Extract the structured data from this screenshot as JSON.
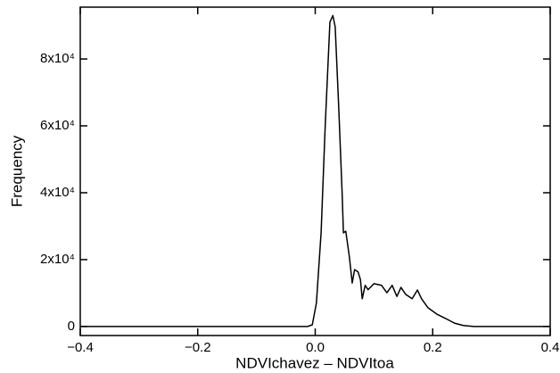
{
  "chart_data": {
    "type": "line",
    "x_label": "NDVIchavez – NDVItoa",
    "y_label": "Frequency",
    "color": "#000000",
    "x": [
      -0.4,
      -0.2,
      -0.013,
      -0.005,
      0.002,
      0.01,
      0.017,
      0.025,
      0.03,
      0.034,
      0.04,
      0.046,
      0.048,
      0.052,
      0.058,
      0.063,
      0.067,
      0.073,
      0.077,
      0.08,
      0.085,
      0.09,
      0.1,
      0.113,
      0.122,
      0.131,
      0.139,
      0.146,
      0.154,
      0.165,
      0.174,
      0.181,
      0.192,
      0.207,
      0.222,
      0.237,
      0.252,
      0.27,
      0.4
    ],
    "values": [
      0,
      0,
      0,
      500,
      7000,
      28000,
      60000,
      91000,
      93000,
      89600,
      65600,
      39000,
      28000,
      28500,
      21000,
      13000,
      17000,
      16300,
      14000,
      8300,
      12300,
      11000,
      12800,
      12300,
      10100,
      12300,
      9000,
      11700,
      9600,
      8300,
      10900,
      8300,
      5600,
      3700,
      2400,
      1000,
      300,
      0,
      0
    ],
    "xlim": [
      -0.4,
      0.4
    ],
    "ylim": [
      -2700,
      95500
    ],
    "xticks": [
      {
        "value": -0.4,
        "label": "−0.4"
      },
      {
        "value": -0.2,
        "label": "−0.2"
      },
      {
        "value": 0,
        "label": "0.0"
      },
      0.2,
      0.4
    ],
    "yticks": [
      0,
      {
        "value": 20000,
        "label": "2x10⁴"
      },
      {
        "value": 40000,
        "label": "4x10⁴"
      },
      {
        "value": 60000,
        "label": "6x10⁴"
      },
      {
        "value": 80000,
        "label": "8x10⁴"
      }
    ]
  }
}
